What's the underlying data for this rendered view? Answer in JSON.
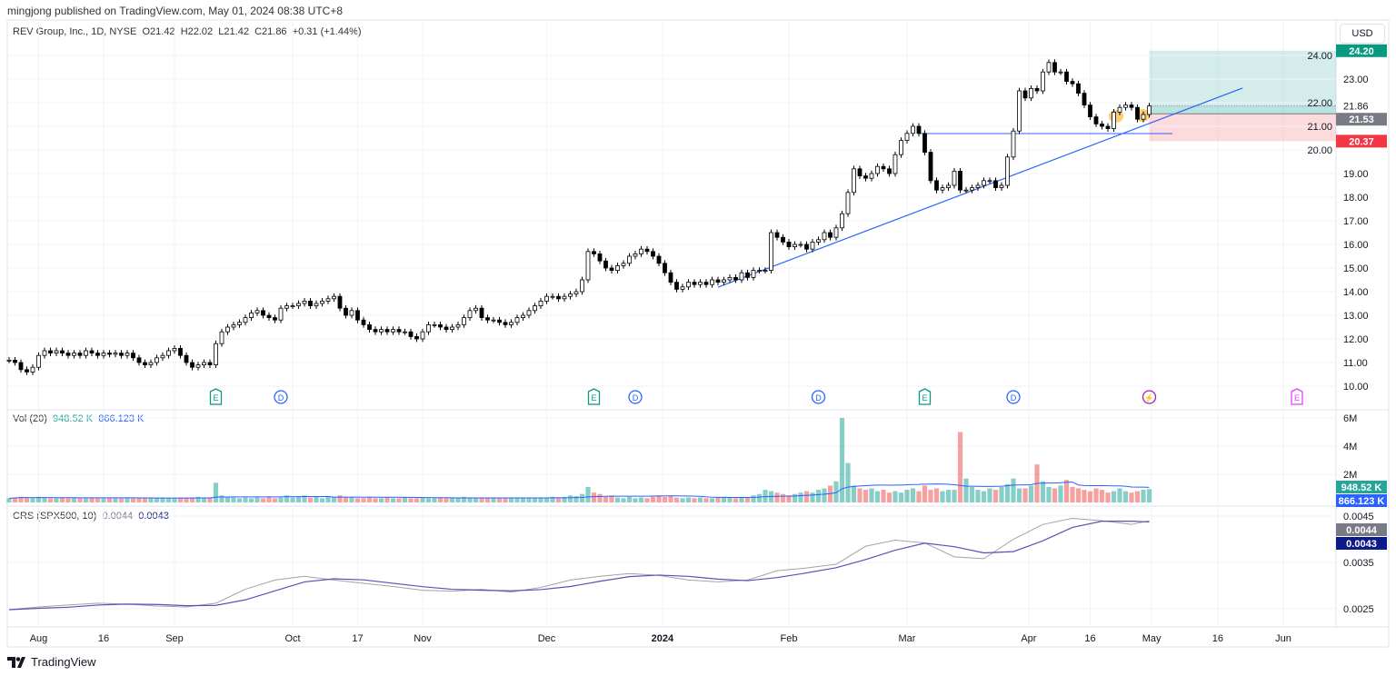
{
  "header": {
    "published": "mingjong published on TradingView.com, May 01, 2024 08:38 UTC+8"
  },
  "legend": {
    "symbol": "REV Group, Inc., 1D, NYSE",
    "open": "O21.42",
    "high": "H22.02",
    "low": "L21.42",
    "close": "C21.86",
    "change": "+0.31 (+1.44%)"
  },
  "currency": "USD",
  "volume_legend": {
    "name": "Vol (20)",
    "value": "948.52 K",
    "ma": "866.123 K"
  },
  "crs_legend": {
    "name": "CRS (SPX500, 10)",
    "value": "0.0044",
    "ma": "0.0043"
  },
  "footer": {
    "brand": "TradingView"
  },
  "colors": {
    "up_volume": "#26a69a",
    "down_volume": "#ef5350",
    "trendline": "#2962ff",
    "profit_zone": "#26a69a",
    "loss_zone": "#f23645",
    "crs_line": "#a3a3a3",
    "crs_ma": "#5c4fb8",
    "dividend": "#2962ff",
    "earnings": "#089981"
  },
  "badges": {
    "target": "24.20",
    "last": "21.86",
    "entry": "21.53",
    "stop": "20.37",
    "vol": "948.52 K",
    "vol_ma": "866.123 K",
    "crs": "0.0044",
    "crs_ma": "0.0043"
  },
  "events": [
    {
      "type": "E",
      "icon": "earnings-icon"
    },
    {
      "type": "D",
      "icon": "dividend-icon"
    },
    {
      "type": "E",
      "icon": "earnings-icon"
    },
    {
      "type": "D",
      "icon": "dividend-icon"
    },
    {
      "type": "D",
      "icon": "dividend-icon"
    },
    {
      "type": "E",
      "icon": "earnings-icon"
    },
    {
      "type": "D",
      "icon": "dividend-icon"
    },
    {
      "type": "⚡",
      "icon": "lightning-icon"
    },
    {
      "type": "E",
      "icon": "earnings-icon"
    }
  ],
  "chart_data": {
    "type": "candlestick",
    "title": "REV Group, Inc., 1D, NYSE",
    "price_ticks": [
      "10.00",
      "11.00",
      "12.00",
      "13.00",
      "14.00",
      "15.00",
      "16.00",
      "17.00",
      "18.00",
      "19.00",
      "20.00",
      "21.00",
      "22.00",
      "23.00",
      "24.00"
    ],
    "volume_ticks": [
      "2M",
      "4M",
      "6M"
    ],
    "crs_ticks": [
      "0.0025",
      "0.0035",
      "0.0045"
    ],
    "x_ticks": [
      "Aug",
      "16",
      "Sep",
      "Oct",
      "17",
      "Nov",
      "Dec",
      "2024",
      "Feb",
      "Mar",
      "Apr",
      "16",
      "May",
      "16",
      "Jun"
    ],
    "closes": [
      11.1,
      11.0,
      10.7,
      10.6,
      10.8,
      11.3,
      11.5,
      11.4,
      11.5,
      11.4,
      11.3,
      11.4,
      11.3,
      11.5,
      11.4,
      11.3,
      11.4,
      11.35,
      11.4,
      11.3,
      11.4,
      11.2,
      11.0,
      10.9,
      11.0,
      11.2,
      11.3,
      11.5,
      11.6,
      11.3,
      11.0,
      10.8,
      10.9,
      11.0,
      10.9,
      11.8,
      12.3,
      12.5,
      12.6,
      12.7,
      12.9,
      13.1,
      13.2,
      13.0,
      12.9,
      12.8,
      13.3,
      13.4,
      13.4,
      13.5,
      13.6,
      13.4,
      13.5,
      13.6,
      13.7,
      13.8,
      13.3,
      13.0,
      13.2,
      12.8,
      12.6,
      12.4,
      12.3,
      12.4,
      12.3,
      12.4,
      12.3,
      12.3,
      12.1,
      12.0,
      12.3,
      12.6,
      12.6,
      12.5,
      12.4,
      12.5,
      12.6,
      12.9,
      13.2,
      13.3,
      12.9,
      12.8,
      12.8,
      12.7,
      12.6,
      12.7,
      12.9,
      13.0,
      13.2,
      13.4,
      13.6,
      13.8,
      13.8,
      13.7,
      13.8,
      13.9,
      14.0,
      14.5,
      15.7,
      15.6,
      15.3,
      15.0,
      14.9,
      15.1,
      15.2,
      15.5,
      15.6,
      15.8,
      15.7,
      15.5,
      15.2,
      14.8,
      14.4,
      14.1,
      14.2,
      14.4,
      14.3,
      14.4,
      14.3,
      14.5,
      14.4,
      14.5,
      14.6,
      14.5,
      14.8,
      14.6,
      14.9,
      14.9,
      14.9,
      16.5,
      16.3,
      16.1,
      15.9,
      16.0,
      16.0,
      15.8,
      16.1,
      16.2,
      16.5,
      16.3,
      16.7,
      17.3,
      18.2,
      19.2,
      18.9,
      18.8,
      19.0,
      19.3,
      19.2,
      19.0,
      19.8,
      20.4,
      20.7,
      21.0,
      20.7,
      19.9,
      18.7,
      18.3,
      18.4,
      18.5,
      19.1,
      18.3,
      18.3,
      18.4,
      18.5,
      18.7,
      18.7,
      18.4,
      18.5,
      19.7,
      20.8,
      22.5,
      22.2,
      22.6,
      22.5,
      23.3,
      23.7,
      23.3,
      23.3,
      22.9,
      22.8,
      22.4,
      21.9,
      21.4,
      21.1,
      21.0,
      20.9,
      21.6,
      21.8,
      21.9,
      21.8,
      21.3,
      21.5,
      21.86
    ],
    "volume_millions": [
      0.3,
      0.35,
      0.4,
      0.35,
      0.3,
      0.4,
      0.35,
      0.3,
      0.3,
      0.35,
      0.3,
      0.35,
      0.3,
      0.3,
      0.35,
      0.3,
      0.3,
      0.35,
      0.3,
      0.3,
      0.35,
      0.3,
      0.3,
      0.35,
      0.3,
      0.3,
      0.35,
      0.3,
      0.3,
      0.35,
      0.3,
      0.35,
      0.4,
      0.3,
      0.35,
      1.4,
      0.5,
      0.4,
      0.35,
      0.3,
      0.35,
      0.3,
      0.35,
      0.3,
      0.4,
      0.3,
      0.35,
      0.5,
      0.35,
      0.4,
      0.5,
      0.35,
      0.4,
      0.3,
      0.45,
      0.4,
      0.5,
      0.4,
      0.35,
      0.3,
      0.3,
      0.35,
      0.3,
      0.3,
      0.35,
      0.3,
      0.3,
      0.35,
      0.3,
      0.3,
      0.35,
      0.3,
      0.3,
      0.35,
      0.3,
      0.35,
      0.3,
      0.4,
      0.35,
      0.3,
      0.3,
      0.35,
      0.3,
      0.3,
      0.35,
      0.3,
      0.3,
      0.35,
      0.3,
      0.3,
      0.35,
      0.3,
      0.4,
      0.35,
      0.4,
      0.5,
      0.45,
      0.6,
      1.1,
      0.7,
      0.6,
      0.4,
      0.5,
      0.35,
      0.3,
      0.4,
      0.3,
      0.35,
      0.3,
      0.4,
      0.5,
      0.4,
      0.45,
      0.35,
      0.3,
      0.35,
      0.3,
      0.35,
      0.3,
      0.3,
      0.35,
      0.4,
      0.35,
      0.3,
      0.4,
      0.35,
      0.5,
      0.6,
      0.9,
      0.8,
      0.7,
      0.6,
      0.5,
      0.6,
      0.7,
      0.8,
      0.7,
      0.9,
      1.0,
      1.2,
      1.5,
      6.0,
      2.8,
      1.2,
      1.0,
      0.9,
      1.0,
      0.8,
      0.9,
      0.7,
      0.8,
      0.7,
      0.9,
      1.0,
      0.8,
      1.2,
      0.9,
      1.0,
      0.8,
      0.9,
      0.9,
      5.0,
      1.7,
      1.1,
      0.9,
      0.8,
      1.0,
      0.9,
      1.1,
      1.3,
      1.7,
      1.0,
      1.0,
      1.2,
      2.7,
      1.5,
      1.1,
      1.0,
      1.2,
      1.6,
      1.1,
      1.0,
      0.9,
      0.8,
      1.0,
      0.9,
      0.7,
      0.8,
      1.0,
      0.8,
      0.7,
      0.8,
      0.9,
      0.95
    ],
    "crs_every_5_bars": [
      0.00248,
      0.00254,
      0.00258,
      0.00262,
      0.0026,
      0.00256,
      0.00254,
      0.00262,
      0.00292,
      0.00312,
      0.0032,
      0.00312,
      0.00305,
      0.00298,
      0.0029,
      0.00288,
      0.00292,
      0.00286,
      0.00296,
      0.00312,
      0.0032,
      0.00326,
      0.00322,
      0.00312,
      0.00308,
      0.00312,
      0.00332,
      0.00338,
      0.00346,
      0.00385,
      0.00398,
      0.00392,
      0.00362,
      0.00358,
      0.004,
      0.00432,
      0.00445,
      0.0044,
      0.00432,
      0.0044
    ],
    "horizontal_line_price": 20.69,
    "trendline": {
      "from_price": 14.19,
      "to_price": 22.62
    },
    "position": {
      "entry": 21.53,
      "target": 24.2,
      "stop": 20.37
    },
    "ylim": [
      9.6,
      24.6
    ]
  }
}
